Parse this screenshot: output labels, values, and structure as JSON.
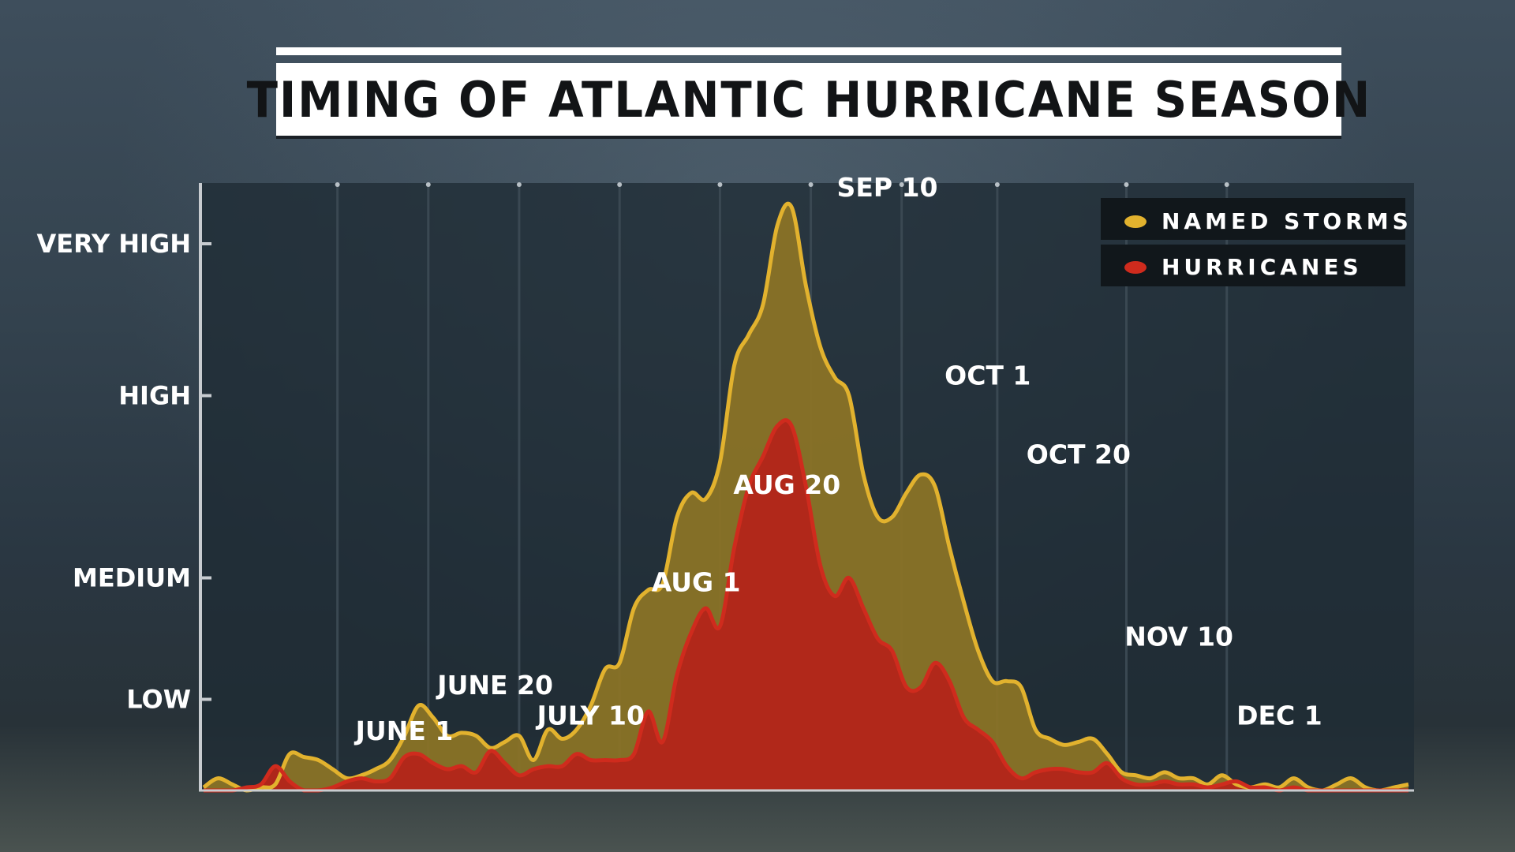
{
  "title": "TIMING OF ATLANTIC HURRICANE SEASON",
  "colors": {
    "named_storms": "#e2b22e",
    "named_storms_fill": "#8a7326",
    "hurricanes": "#cf2b1d",
    "hurricanes_fill": "#b3261a",
    "plot_bg": "#1f2b34"
  },
  "chart_data": {
    "type": "area",
    "title": "TIMING OF ATLANTIC HURRICANE SEASON",
    "xlabel": "",
    "ylabel": "",
    "xlim": [
      -42,
      210
    ],
    "ylim": [
      0,
      1
    ],
    "x_unit": "days relative to June 1",
    "grid": true,
    "legend_position": "top-right",
    "y_ticks": [
      {
        "label": "LOW",
        "value": 0.15
      },
      {
        "label": "MEDIUM",
        "value": 0.35
      },
      {
        "label": "HIGH",
        "value": 0.65
      },
      {
        "label": "VERY HIGH",
        "value": 0.9
      }
    ],
    "x_gridlines": [
      -14,
      5,
      24,
      45,
      66,
      85,
      104,
      124,
      151,
      172
    ],
    "peak_labels": [
      {
        "label": "JUNE 1",
        "x": 0,
        "y": 0.065
      },
      {
        "label": "JUNE 20",
        "x": 19,
        "y": 0.14
      },
      {
        "label": "JULY 10",
        "x": 39,
        "y": 0.09
      },
      {
        "label": "AUG 1",
        "x": 61,
        "y": 0.31
      },
      {
        "label": "AUG 20",
        "x": 80,
        "y": 0.47
      },
      {
        "label": "SEP 10",
        "x": 101,
        "y": 0.96
      },
      {
        "label": "OCT 1",
        "x": 122,
        "y": 0.65
      },
      {
        "label": "OCT 20",
        "x": 141,
        "y": 0.52
      },
      {
        "label": "NOV 10",
        "x": 162,
        "y": 0.22
      },
      {
        "label": "DEC 1",
        "x": 183,
        "y": 0.09
      }
    ],
    "series": [
      {
        "name": "NAMED STORMS",
        "x": [
          -42,
          -39,
          -36,
          -33,
          -30,
          -27,
          -24,
          -21,
          -18,
          -15,
          -12,
          -9,
          -6,
          -3,
          0,
          3,
          6,
          9,
          12,
          15,
          18,
          21,
          24,
          27,
          30,
          33,
          36,
          39,
          42,
          45,
          48,
          51,
          54,
          57,
          60,
          63,
          66,
          69,
          72,
          75,
          78,
          81,
          84,
          87,
          90,
          93,
          96,
          99,
          102,
          105,
          108,
          111,
          114,
          117,
          120,
          123,
          126,
          129,
          132,
          135,
          138,
          141,
          144,
          147,
          150,
          153,
          156,
          159,
          162,
          165,
          168,
          171,
          174,
          177,
          180,
          183,
          186,
          189,
          192,
          195,
          198,
          201,
          204,
          207,
          210
        ],
        "values": [
          0.005,
          0.02,
          0.01,
          0,
          0.005,
          0.01,
          0.06,
          0.055,
          0.05,
          0.035,
          0.02,
          0.025,
          0.035,
          0.05,
          0.09,
          0.14,
          0.12,
          0.09,
          0.095,
          0.09,
          0.07,
          0.08,
          0.09,
          0.05,
          0.1,
          0.085,
          0.1,
          0.14,
          0.2,
          0.21,
          0.3,
          0.33,
          0.34,
          0.45,
          0.49,
          0.48,
          0.54,
          0.7,
          0.75,
          0.8,
          0.93,
          0.96,
          0.83,
          0.73,
          0.68,
          0.65,
          0.52,
          0.45,
          0.45,
          0.49,
          0.52,
          0.5,
          0.4,
          0.31,
          0.23,
          0.18,
          0.18,
          0.17,
          0.1,
          0.085,
          0.075,
          0.08,
          0.085,
          0.06,
          0.03,
          0.025,
          0.02,
          0.03,
          0.02,
          0.02,
          0.01,
          0.025,
          0.01,
          0.005,
          0.01,
          0.005,
          0.02,
          0.005,
          0,
          0.01,
          0.02,
          0.005,
          0,
          0.005,
          0.01
        ]
      },
      {
        "name": "HURRICANES",
        "x": [
          -42,
          -39,
          -36,
          -33,
          -30,
          -27,
          -24,
          -21,
          -18,
          -15,
          -12,
          -9,
          -6,
          -3,
          0,
          3,
          6,
          9,
          12,
          15,
          18,
          21,
          24,
          27,
          30,
          33,
          36,
          39,
          42,
          45,
          48,
          51,
          54,
          57,
          60,
          63,
          66,
          69,
          72,
          75,
          78,
          81,
          84,
          87,
          90,
          93,
          96,
          99,
          102,
          105,
          108,
          111,
          114,
          117,
          120,
          123,
          126,
          129,
          132,
          135,
          138,
          141,
          144,
          147,
          150,
          153,
          156,
          159,
          162,
          165,
          168,
          171,
          174,
          177,
          180,
          183,
          186,
          189,
          192,
          195,
          198,
          201,
          204,
          207,
          210
        ],
        "values": [
          0,
          0,
          0,
          0.005,
          0.01,
          0.04,
          0.015,
          0,
          0,
          0.005,
          0.015,
          0.02,
          0.015,
          0.02,
          0.055,
          0.06,
          0.045,
          0.035,
          0.04,
          0.03,
          0.065,
          0.045,
          0.025,
          0.035,
          0.04,
          0.04,
          0.06,
          0.05,
          0.05,
          0.05,
          0.06,
          0.13,
          0.08,
          0.19,
          0.26,
          0.3,
          0.27,
          0.4,
          0.5,
          0.55,
          0.6,
          0.6,
          0.5,
          0.37,
          0.32,
          0.35,
          0.3,
          0.25,
          0.23,
          0.17,
          0.17,
          0.21,
          0.18,
          0.12,
          0.1,
          0.08,
          0.04,
          0.02,
          0.03,
          0.035,
          0.035,
          0.03,
          0.03,
          0.045,
          0.02,
          0.01,
          0.01,
          0.015,
          0.01,
          0.01,
          0.005,
          0.01,
          0.015,
          0.005,
          0.005,
          0,
          0.005,
          0,
          0,
          0,
          0,
          0,
          0,
          0,
          0
        ]
      }
    ]
  }
}
